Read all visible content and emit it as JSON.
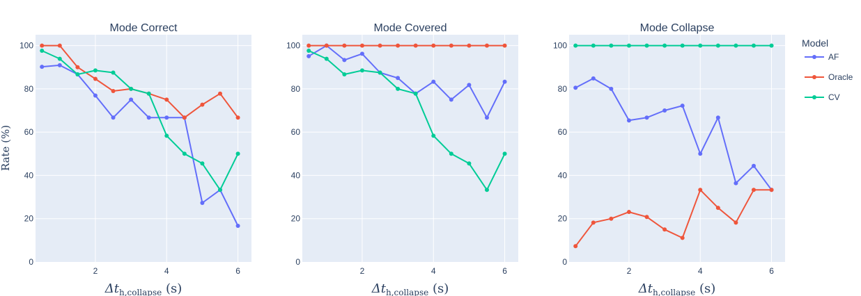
{
  "figure": {
    "ylabel": "Rate (%)",
    "xlabel": {
      "prefix": "Δt",
      "subscript": "h,collapse",
      "suffix": " (s)"
    },
    "legend": {
      "title": "Model",
      "placement": "right"
    }
  },
  "colors": {
    "AF": "#636efa",
    "Oracle": "#ef553b",
    "CV": "#00cc96",
    "plot_bg": "#e5ecf6",
    "grid": "#ffffff",
    "text": "#2a3f5f"
  },
  "chart_data": [
    {
      "type": "line",
      "title": "Mode Correct",
      "x": [
        0.5,
        1,
        1.5,
        2,
        2.5,
        3,
        3.5,
        4,
        4.5,
        5,
        5.5,
        6
      ],
      "xticks": [
        2,
        4,
        6
      ],
      "yticks": [
        0,
        20,
        40,
        60,
        80,
        100
      ],
      "xlim": [
        0.32,
        6.38
      ],
      "ylim": [
        0,
        105
      ],
      "series": [
        {
          "name": "AF",
          "values": [
            90.2,
            90.9,
            86.7,
            76.9,
            66.7,
            75.0,
            66.7,
            66.7,
            66.7,
            27.3,
            33.3,
            16.7
          ]
        },
        {
          "name": "Oracle",
          "values": [
            100,
            100,
            90.0,
            84.6,
            79.0,
            80.0,
            77.8,
            75.0,
            66.7,
            72.7,
            77.8,
            66.7
          ]
        },
        {
          "name": "CV",
          "values": [
            97.6,
            93.9,
            86.7,
            88.5,
            87.5,
            80.0,
            77.8,
            58.3,
            50.0,
            45.5,
            33.3,
            50.0
          ]
        }
      ]
    },
    {
      "type": "line",
      "title": "Mode Covered",
      "x": [
        0.5,
        1,
        1.5,
        2,
        2.5,
        3,
        3.5,
        4,
        4.5,
        5,
        5.5,
        6
      ],
      "xticks": [
        2,
        4,
        6
      ],
      "yticks": [
        0,
        20,
        40,
        60,
        80,
        100
      ],
      "xlim": [
        0.32,
        6.38
      ],
      "ylim": [
        0,
        105
      ],
      "series": [
        {
          "name": "AF",
          "values": [
            95.1,
            100,
            93.3,
            96.2,
            87.5,
            85.0,
            77.8,
            83.3,
            75.0,
            81.8,
            66.7,
            83.3
          ]
        },
        {
          "name": "Oracle",
          "values": [
            100,
            100,
            100,
            100,
            100,
            100,
            100,
            100,
            100,
            100,
            100,
            100
          ]
        },
        {
          "name": "CV",
          "values": [
            97.6,
            93.9,
            86.7,
            88.5,
            87.5,
            80.0,
            77.8,
            58.3,
            50.0,
            45.5,
            33.3,
            50.0
          ]
        }
      ]
    },
    {
      "type": "line",
      "title": "Mode Collapse",
      "x": [
        0.5,
        1,
        1.5,
        2,
        2.5,
        3,
        3.5,
        4,
        4.5,
        5,
        5.5,
        6
      ],
      "xticks": [
        2,
        4,
        6
      ],
      "yticks": [
        0,
        20,
        40,
        60,
        80,
        100
      ],
      "xlim": [
        0.32,
        6.38
      ],
      "ylim": [
        0,
        105
      ],
      "series": [
        {
          "name": "AF",
          "values": [
            80.5,
            84.8,
            80.0,
            65.4,
            66.7,
            70.0,
            72.2,
            50.0,
            66.7,
            36.4,
            44.4,
            33.3
          ]
        },
        {
          "name": "Oracle",
          "values": [
            7.3,
            18.2,
            20.0,
            23.1,
            20.8,
            15.0,
            11.1,
            33.3,
            25.0,
            18.2,
            33.3,
            33.3
          ]
        },
        {
          "name": "CV",
          "values": [
            100,
            100,
            100,
            100,
            100,
            100,
            100,
            100,
            100,
            100,
            100,
            100
          ]
        }
      ]
    }
  ]
}
